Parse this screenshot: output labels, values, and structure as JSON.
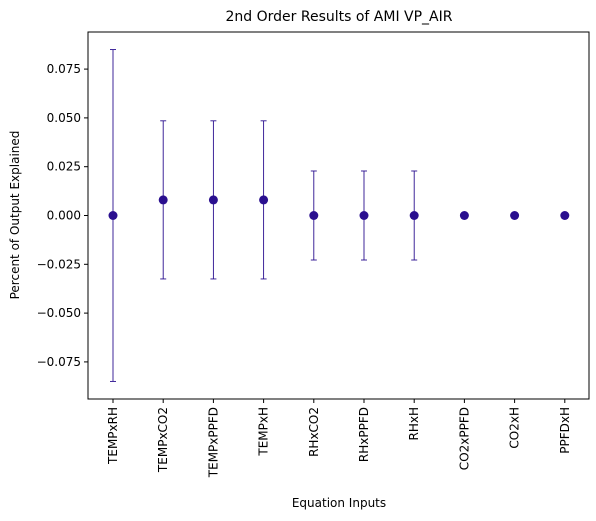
{
  "chart_data": {
    "type": "scatter",
    "title": "2nd Order Results of AMI VP_AIR",
    "xlabel": "Equation Inputs",
    "ylabel": "Percent of Output Explained",
    "categories": [
      "TEMPxRH",
      "TEMPxCO2",
      "TEMPxPPFD",
      "TEMPxH",
      "RHxCO2",
      "RHxPPFD",
      "RHxH",
      "CO2xPPFD",
      "CO2xH",
      "PPFDxH"
    ],
    "values": [
      0.0,
      0.008,
      0.008,
      0.008,
      0.0,
      0.0,
      0.0,
      0.0,
      0.0,
      0.0
    ],
    "errors": [
      0.085,
      0.0405,
      0.0405,
      0.0405,
      0.0228,
      0.0228,
      0.0228,
      0.0,
      0.0,
      0.0
    ],
    "ylim": [
      -0.094,
      0.094
    ],
    "yticks": [
      -0.075,
      -0.05,
      -0.025,
      0.0,
      0.025,
      0.05,
      0.075
    ],
    "ytick_labels": [
      "−0.075",
      "−0.050",
      "−0.025",
      "0.000",
      "0.025",
      "0.050",
      "0.075"
    ],
    "grid": false,
    "marker_color": "#2a0f8f",
    "errorbar_color": "#2a0f8f"
  }
}
